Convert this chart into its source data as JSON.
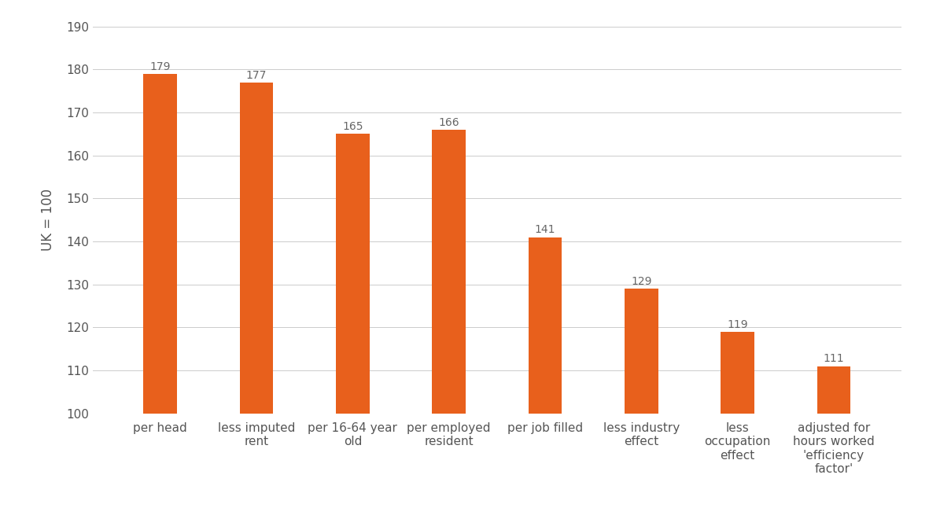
{
  "categories": [
    "per head",
    "less imputed\nrent",
    "per 16-64 year\nold",
    "per employed\nresident",
    "per job filled",
    "less industry\neffect",
    "less\noccupation\neffect",
    "adjusted for\nhours worked\n'efficiency\nfactor'"
  ],
  "values": [
    179,
    177,
    165,
    166,
    141,
    129,
    119,
    111
  ],
  "bar_color": "#e8601c",
  "ylabel": "UK = 100",
  "ylim": [
    100,
    190
  ],
  "yticks": [
    100,
    110,
    120,
    130,
    140,
    150,
    160,
    170,
    180,
    190
  ],
  "background_color": "#ffffff",
  "grid_color": "#cccccc",
  "label_fontsize": 11,
  "ylabel_fontsize": 12,
  "tick_fontsize": 11,
  "value_label_fontsize": 10,
  "bar_width": 0.35
}
